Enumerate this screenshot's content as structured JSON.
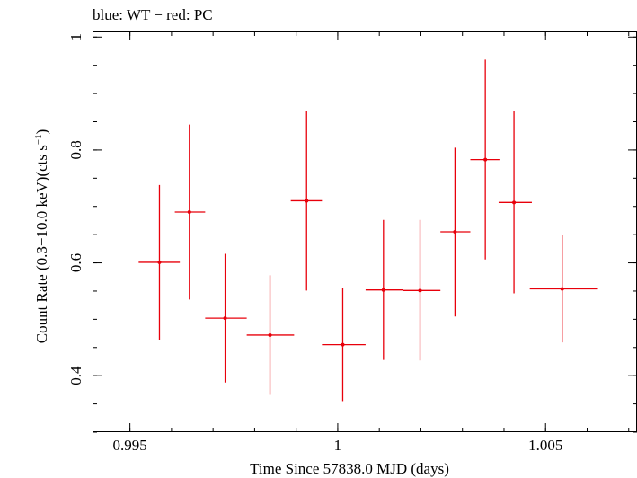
{
  "chart_data": {
    "type": "scatter",
    "title": "blue: WT − red: PC",
    "xlabel": "Time Since 57838.0 MJD (days)",
    "ylabel": "Count Rate (0.3−10.0 keV)(cts s",
    "ylabel_sup": "−1",
    "ylabel_close": ")",
    "xlim": [
      0.9941,
      1.0072
    ],
    "ylim": [
      0.3,
      1.01
    ],
    "x_ticks": [
      {
        "value": 0.995,
        "label": "0.995"
      },
      {
        "value": 1.0,
        "label": "1"
      },
      {
        "value": 1.005,
        "label": "1.005"
      }
    ],
    "x_minor_step": 0.001,
    "y_ticks": [
      {
        "value": 0.4,
        "label": "0.4"
      },
      {
        "value": 0.6,
        "label": "0.6"
      },
      {
        "value": 0.8,
        "label": "0.8"
      },
      {
        "value": 1.0,
        "label": "1"
      }
    ],
    "y_minor_step": 0.05,
    "grid": false,
    "series": [
      {
        "color": "#e8000b",
        "points": [
          {
            "x": 0.99571,
            "y": 0.601,
            "xlo": 0.99521,
            "xhi": 0.9962,
            "ylo": 0.464,
            "yhi": 0.738
          },
          {
            "x": 0.99643,
            "y": 0.69,
            "xlo": 0.99608,
            "xhi": 0.99681,
            "ylo": 0.535,
            "yhi": 0.845
          },
          {
            "x": 0.99729,
            "y": 0.502,
            "xlo": 0.99681,
            "xhi": 0.99781,
            "ylo": 0.388,
            "yhi": 0.616
          },
          {
            "x": 0.99837,
            "y": 0.472,
            "xlo": 0.99781,
            "xhi": 0.99895,
            "ylo": 0.366,
            "yhi": 0.578
          },
          {
            "x": 0.99925,
            "y": 0.71,
            "xlo": 0.99887,
            "xhi": 0.99962,
            "ylo": 0.551,
            "yhi": 0.87
          },
          {
            "x": 1.00012,
            "y": 0.455,
            "xlo": 0.99962,
            "xhi": 1.00067,
            "ylo": 0.355,
            "yhi": 0.555
          },
          {
            "x": 1.0011,
            "y": 0.552,
            "xlo": 1.00067,
            "xhi": 1.00157,
            "ylo": 0.428,
            "yhi": 0.676
          },
          {
            "x": 1.00198,
            "y": 0.551,
            "xlo": 1.00157,
            "xhi": 1.00247,
            "ylo": 0.427,
            "yhi": 0.676
          },
          {
            "x": 1.00282,
            "y": 0.655,
            "xlo": 1.00247,
            "xhi": 1.00319,
            "ylo": 0.505,
            "yhi": 0.804
          },
          {
            "x": 1.00355,
            "y": 0.783,
            "xlo": 1.00319,
            "xhi": 1.00389,
            "ylo": 0.606,
            "yhi": 0.96
          },
          {
            "x": 1.00424,
            "y": 0.707,
            "xlo": 1.00387,
            "xhi": 1.00467,
            "ylo": 0.546,
            "yhi": 0.87
          },
          {
            "x": 1.0054,
            "y": 0.554,
            "xlo": 1.00462,
            "xhi": 1.00626,
            "ylo": 0.459,
            "yhi": 0.65
          }
        ]
      }
    ]
  }
}
